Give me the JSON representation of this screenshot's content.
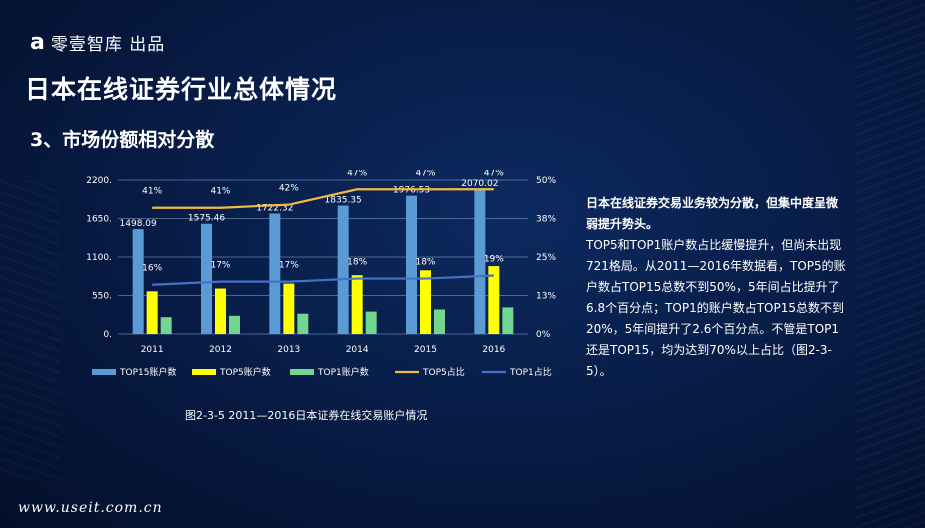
{
  "brand": {
    "mark": "a",
    "name": "零壹智库 出品"
  },
  "title": "日本在线证券行业总体情况",
  "subtitle": "3、市场份额相对分散",
  "caption": "图2-3-5  2011—2016日本证券在线交易账户情况",
  "description": {
    "heading": "日本在线证券交易业务较为分散，但集中度呈微弱提升势头。",
    "body": "TOP5和TOP1账户数占比缓慢提升，但尚未出现721格局。从2011—2016年数据看，TOP5的账户数占TOP15总数不到50%，5年间占比提升了6.8个百分点；TOP1的账户数占TOP15总数不到20%，5年间提升了2.6个百分点。不管是TOP1还是TOP15，均为达到70%以上占比（图2-3-5）。"
  },
  "watermark": "www.useit.com.cn",
  "colors": {
    "top15": "#5b9bd5",
    "top5": "#ffff00",
    "top1": "#70d690",
    "top5_line": "#f4b942",
    "top1_line": "#4472c4"
  },
  "chart_data": {
    "type": "bar",
    "categories": [
      "2011",
      "2012",
      "2013",
      "2014",
      "2015",
      "2016"
    ],
    "y_ticks": [
      "2200.",
      "1650.",
      "1100.",
      "550.",
      "0."
    ],
    "y2_ticks": [
      "50%",
      "38%",
      "25%",
      "13%",
      "0%"
    ],
    "ylim": [
      0,
      2200
    ],
    "y2lim": [
      0,
      50
    ],
    "series": [
      {
        "name": "TOP15账户数",
        "kind": "bar",
        "values": [
          1498.09,
          1575.46,
          1722.32,
          1835.35,
          1976.53,
          2070.02
        ],
        "labels": [
          "1498.09",
          "1575.46",
          "1722.32",
          "1835.35",
          "1976.53",
          "2070.02"
        ]
      },
      {
        "name": "TOP5账户数",
        "kind": "bar",
        "values": [
          610,
          650,
          720,
          840,
          910,
          970
        ]
      },
      {
        "name": "TOP1账户数",
        "kind": "bar",
        "values": [
          240,
          260,
          290,
          320,
          350,
          380
        ]
      },
      {
        "name": "TOP5占比",
        "kind": "line",
        "axis": "right",
        "values": [
          41,
          41,
          42,
          47,
          47,
          47
        ],
        "labels": [
          "41%",
          "41%",
          "42%",
          "47%",
          "47%",
          "47%"
        ]
      },
      {
        "name": "TOP1占比",
        "kind": "line",
        "axis": "right",
        "values": [
          16,
          17,
          17,
          18,
          18,
          19
        ],
        "labels": [
          "16%",
          "17%",
          "17%",
          "18%",
          "18%",
          "19%"
        ]
      }
    ],
    "legend_position": "bottom",
    "grid": true
  }
}
